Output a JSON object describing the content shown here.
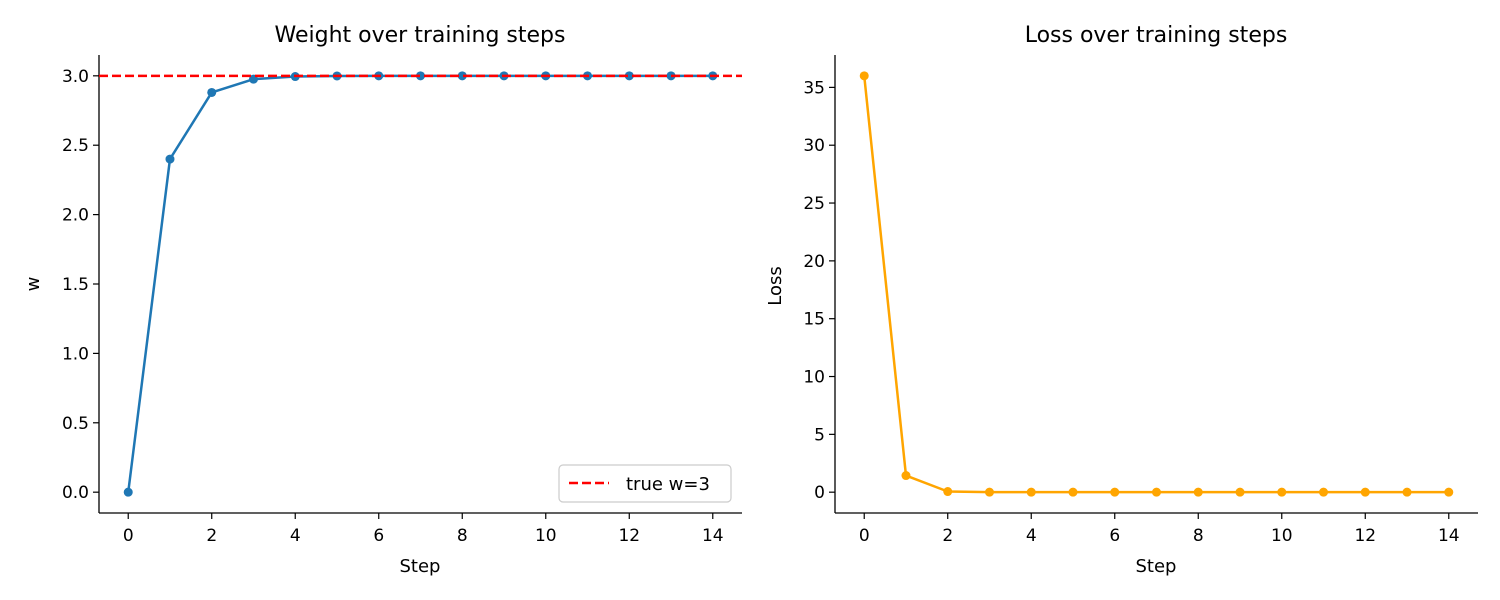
{
  "chart_data": [
    {
      "type": "line",
      "title": "Weight over training steps",
      "xlabel": "Step",
      "ylabel": "w",
      "xlim": [
        -0.7,
        14.7
      ],
      "ylim": [
        -0.15,
        3.15
      ],
      "xticks": [
        0,
        2,
        4,
        6,
        8,
        10,
        12,
        14
      ],
      "yticks": [
        0.0,
        0.5,
        1.0,
        1.5,
        2.0,
        2.5,
        3.0
      ],
      "ytick_labels": [
        "0.0",
        "0.5",
        "1.0",
        "1.5",
        "2.0",
        "2.5",
        "3.0"
      ],
      "grid": false,
      "legend_position": "lower-right",
      "series": [
        {
          "color": "#1f77b4",
          "marker": "circle",
          "x": [
            0,
            1,
            2,
            3,
            4,
            5,
            6,
            7,
            8,
            9,
            10,
            11,
            12,
            13,
            14
          ],
          "y": [
            0.0,
            2.4,
            2.88,
            2.976,
            2.995,
            2.999,
            3.0,
            3.0,
            3.0,
            3.0,
            3.0,
            3.0,
            3.0,
            3.0,
            3.0
          ]
        }
      ],
      "reference_lines": [
        {
          "name": "true w=3",
          "y": 3,
          "color": "#ff0000",
          "style": "dashed"
        }
      ]
    },
    {
      "type": "line",
      "title": "Loss over training steps",
      "xlabel": "Step",
      "ylabel": "Loss",
      "xlim": [
        -0.7,
        14.7
      ],
      "ylim": [
        -1.8,
        37.8
      ],
      "xticks": [
        0,
        2,
        4,
        6,
        8,
        10,
        12,
        14
      ],
      "yticks": [
        0,
        5,
        10,
        15,
        20,
        25,
        30,
        35
      ],
      "ytick_labels": [
        "0",
        "5",
        "10",
        "15",
        "20",
        "25",
        "30",
        "35"
      ],
      "grid": false,
      "series": [
        {
          "color": "#ffa500",
          "marker": "circle",
          "x": [
            0,
            1,
            2,
            3,
            4,
            5,
            6,
            7,
            8,
            9,
            10,
            11,
            12,
            13,
            14
          ],
          "y": [
            36.0,
            1.44,
            0.058,
            0.002,
            0.0001,
            0.0,
            0.0,
            0.0,
            0.0,
            0.0,
            0.0,
            0.0,
            0.0,
            0.0,
            0.0
          ]
        }
      ]
    }
  ]
}
